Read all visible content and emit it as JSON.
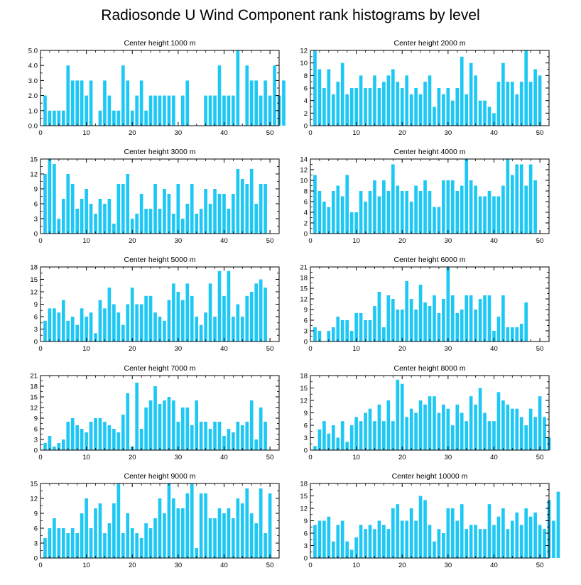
{
  "page": {
    "title": "Radiosonde U Wind Component rank histograms by level"
  },
  "colors": {
    "bar": "#1ec8f5",
    "axis": "#000000",
    "background": "#ffffff"
  },
  "chart_data": [
    {
      "type": "bar",
      "title": "Center height 1000 m",
      "xlim": [
        0,
        52
      ],
      "ylim": [
        0,
        5
      ],
      "xticks": [
        0,
        10,
        20,
        30,
        40,
        50
      ],
      "yticks": [
        0,
        1,
        2,
        3,
        4,
        5
      ],
      "ytick_labels": [
        "0.0",
        "1.0",
        "2.0",
        "3.0",
        "4.0",
        "5.0"
      ],
      "values": [
        2,
        1,
        1,
        1,
        1,
        4,
        3,
        3,
        3,
        2,
        3,
        0,
        1,
        3,
        2,
        1,
        1,
        4,
        3,
        1,
        2,
        3,
        1,
        2,
        2,
        2,
        2,
        2,
        2,
        0,
        2,
        3,
        0,
        0,
        0,
        2,
        2,
        2,
        4,
        2,
        2,
        2,
        5,
        0,
        4,
        3,
        3,
        2,
        3,
        2,
        4,
        2,
        3
      ]
    },
    {
      "type": "bar",
      "title": "Center height 2000 m",
      "xlim": [
        0,
        52
      ],
      "ylim": [
        0,
        12
      ],
      "xticks": [
        0,
        10,
        20,
        30,
        40,
        50
      ],
      "yticks": [
        0,
        2,
        4,
        6,
        8,
        10,
        12
      ],
      "ytick_labels": [
        "0",
        "2",
        "4",
        "6",
        "8",
        "10",
        "12"
      ],
      "values": [
        12,
        9,
        6,
        9,
        5,
        7,
        10,
        5,
        6,
        6,
        8,
        6,
        6,
        8,
        6,
        7,
        8,
        9,
        7,
        6,
        8,
        5,
        6,
        5,
        7,
        8,
        3,
        6,
        5,
        6,
        4,
        6,
        11,
        5,
        10,
        8,
        4,
        4,
        3,
        2,
        7,
        10,
        7,
        7,
        5,
        7,
        12,
        7,
        9,
        8
      ]
    },
    {
      "type": "bar",
      "title": "Center height 3000 m",
      "xlim": [
        0,
        52
      ],
      "ylim": [
        0,
        15
      ],
      "xticks": [
        0,
        10,
        20,
        30,
        40,
        50
      ],
      "yticks": [
        0,
        3,
        6,
        9,
        12,
        15
      ],
      "ytick_labels": [
        "0",
        "3",
        "6",
        "9",
        "12",
        "15"
      ],
      "values": [
        12,
        15,
        14,
        3,
        7,
        12,
        10,
        5,
        7,
        9,
        6,
        4,
        7,
        6,
        7,
        2,
        10,
        10,
        12,
        3,
        4,
        8,
        5,
        5,
        10,
        5,
        9,
        8,
        4,
        10,
        3,
        6,
        10,
        4,
        5,
        9,
        6,
        9,
        8,
        8,
        5,
        8,
        13,
        11,
        10,
        13,
        6,
        10,
        10
      ]
    },
    {
      "type": "bar",
      "title": "Center height 4000 m",
      "xlim": [
        0,
        52
      ],
      "ylim": [
        0,
        14
      ],
      "xticks": [
        0,
        10,
        20,
        30,
        40,
        50
      ],
      "yticks": [
        0,
        2,
        4,
        6,
        8,
        10,
        12,
        14
      ],
      "ytick_labels": [
        "0",
        "2",
        "4",
        "6",
        "8",
        "10",
        "12",
        "14"
      ],
      "values": [
        11,
        8,
        6,
        5,
        8,
        9,
        7,
        11,
        4,
        4,
        8,
        6,
        8,
        10,
        7,
        10,
        8,
        13,
        9,
        8,
        8,
        6,
        9,
        8,
        10,
        8,
        5,
        5,
        10,
        10,
        10,
        8,
        9,
        14,
        10,
        9,
        7,
        7,
        8,
        7,
        7,
        9,
        14,
        11,
        13,
        13,
        9,
        13,
        10
      ]
    },
    {
      "type": "bar",
      "title": "Center height 5000 m",
      "xlim": [
        0,
        52
      ],
      "ylim": [
        0,
        18
      ],
      "xticks": [
        0,
        10,
        20,
        30,
        40,
        50
      ],
      "yticks": [
        0,
        3,
        6,
        9,
        12,
        15,
        18
      ],
      "ytick_labels": [
        "0",
        "3",
        "6",
        "9",
        "12",
        "15",
        "18"
      ],
      "values": [
        5,
        8,
        8,
        7,
        10,
        5,
        6,
        4,
        8,
        6,
        7,
        2,
        10,
        8,
        13,
        9,
        7,
        4,
        9,
        13,
        9,
        9,
        11,
        11,
        7,
        6,
        5,
        10,
        14,
        12,
        10,
        14,
        11,
        6,
        4,
        7,
        14,
        6,
        17,
        11,
        17,
        6,
        9,
        6,
        11,
        12,
        14,
        15,
        13
      ]
    },
    {
      "type": "bar",
      "title": "Center height 6000 m",
      "xlim": [
        0,
        52
      ],
      "ylim": [
        0,
        21
      ],
      "xticks": [
        0,
        10,
        20,
        30,
        40,
        50
      ],
      "yticks": [
        0,
        3,
        6,
        9,
        12,
        15,
        18,
        21
      ],
      "ytick_labels": [
        "0",
        "3",
        "6",
        "9",
        "12",
        "15",
        "18",
        "21"
      ],
      "values": [
        4,
        3,
        0,
        3,
        4,
        7,
        6,
        6,
        3,
        8,
        8,
        6,
        6,
        10,
        14,
        4,
        13,
        12,
        9,
        9,
        17,
        12,
        9,
        16,
        11,
        10,
        13,
        8,
        12,
        21,
        13,
        8,
        9,
        13,
        13,
        9,
        12,
        13,
        13,
        3,
        7,
        13,
        4,
        4,
        4,
        5,
        11
      ]
    },
    {
      "type": "bar",
      "title": "Center height 7000 m",
      "xlim": [
        0,
        52
      ],
      "ylim": [
        0,
        21
      ],
      "xticks": [
        0,
        10,
        20,
        30,
        40,
        50
      ],
      "yticks": [
        0,
        3,
        6,
        9,
        12,
        15,
        18,
        21
      ],
      "ytick_labels": [
        "0",
        "3",
        "6",
        "9",
        "12",
        "15",
        "18",
        "21"
      ],
      "values": [
        2,
        4,
        1,
        2,
        3,
        8,
        9,
        7,
        6,
        5,
        8,
        9,
        9,
        8,
        7,
        6,
        5,
        10,
        16,
        1,
        19,
        6,
        12,
        14,
        18,
        13,
        14,
        15,
        14,
        8,
        12,
        12,
        7,
        14,
        8,
        8,
        6,
        8,
        8,
        4,
        6,
        5,
        8,
        7,
        8,
        14,
        3,
        12,
        8
      ]
    },
    {
      "type": "bar",
      "title": "Center height 8000 m",
      "xlim": [
        0,
        52
      ],
      "ylim": [
        0,
        18
      ],
      "xticks": [
        0,
        10,
        20,
        30,
        40,
        50
      ],
      "yticks": [
        0,
        3,
        6,
        9,
        12,
        15,
        18
      ],
      "ytick_labels": [
        "0",
        "3",
        "6",
        "9",
        "12",
        "15",
        "18"
      ],
      "values": [
        1,
        5,
        7,
        4,
        6,
        3,
        7,
        2,
        6,
        8,
        7,
        9,
        10,
        7,
        11,
        7,
        12,
        7,
        17,
        16,
        8,
        10,
        9,
        12,
        11,
        13,
        13,
        9,
        11,
        10,
        6,
        11,
        9,
        7,
        13,
        11,
        15,
        9,
        7,
        7,
        14,
        12,
        11,
        10,
        10,
        8,
        6,
        10,
        8,
        13,
        8,
        3
      ]
    },
    {
      "type": "bar",
      "title": "Center height 9000 m",
      "xlim": [
        0,
        52
      ],
      "ylim": [
        0,
        15
      ],
      "xticks": [
        0,
        10,
        20,
        30,
        40,
        50
      ],
      "yticks": [
        0,
        3,
        6,
        9,
        12,
        15
      ],
      "ytick_labels": [
        "0",
        "3",
        "6",
        "9",
        "12",
        "15"
      ],
      "values": [
        4,
        6,
        8,
        6,
        6,
        5,
        6,
        5,
        9,
        12,
        6,
        10,
        11,
        5,
        7,
        11,
        15,
        5,
        9,
        6,
        5,
        4,
        7,
        6,
        8,
        12,
        9,
        15,
        12,
        10,
        10,
        13,
        15,
        2,
        13,
        13,
        8,
        8,
        10,
        9,
        10,
        8,
        12,
        11,
        14,
        9,
        7,
        14,
        5,
        13
      ]
    },
    {
      "type": "bar",
      "title": "Center height 10000 m",
      "xlim": [
        0,
        52
      ],
      "ylim": [
        0,
        18
      ],
      "xticks": [
        0,
        10,
        20,
        30,
        40,
        50
      ],
      "yticks": [
        0,
        3,
        6,
        9,
        12,
        15,
        18
      ],
      "ytick_labels": [
        "0",
        "3",
        "6",
        "9",
        "12",
        "15",
        "18"
      ],
      "values": [
        8,
        9,
        9,
        10,
        4,
        8,
        9,
        4,
        2,
        5,
        8,
        7,
        8,
        7,
        9,
        8,
        7,
        12,
        13,
        9,
        9,
        12,
        9,
        15,
        14,
        8,
        4,
        7,
        6,
        12,
        12,
        9,
        13,
        7,
        8,
        8,
        7,
        7,
        13,
        8,
        10,
        12,
        7,
        9,
        11,
        8,
        12,
        10,
        11,
        8,
        7,
        14,
        9,
        16
      ]
    }
  ]
}
